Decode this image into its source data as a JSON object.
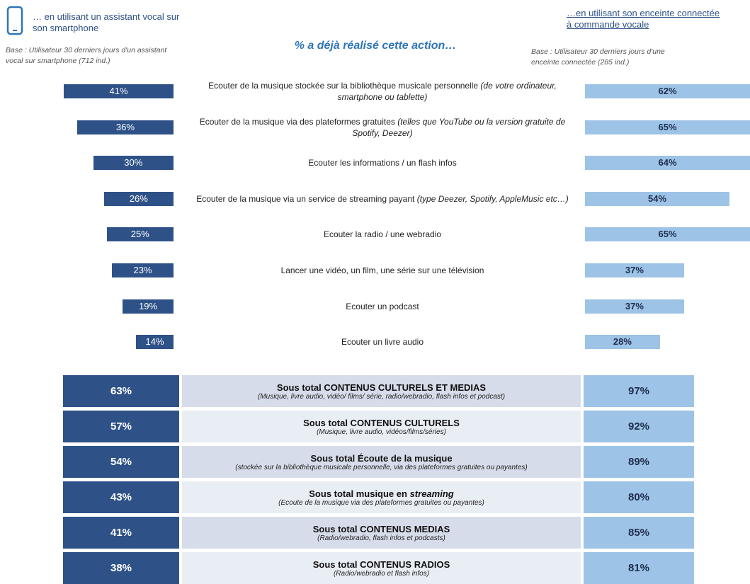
{
  "chart_data": {
    "type": "butterfly-bar",
    "subtitle": "% a déjà réalisé cette action…",
    "categories": [
      "Ecouter de la musique stockée sur la bibliothèque musicale personnelle",
      "Ecouter de la musique via des plateformes gratuites",
      "Ecouter les informations / un flash infos",
      "Ecouter de la musique via un service de streaming payant",
      "Ecouter  la radio / une webradio",
      "Lancer une vidéo, un film, une série sur une télévision",
      "Ecouter un podcast",
      "Ecouter un livre audio"
    ],
    "category_notes": [
      "(de votre ordinateur, smartphone ou tablette)",
      "(telles que YouTube ou la version gratuite de Spotify, Deezer)",
      null,
      "(type Deezer,  Spotify, AppleMusic etc…)",
      null,
      null,
      null,
      null
    ],
    "series": [
      {
        "name": "… en utilisant un assistant vocal sur son smartphone",
        "base": "Base : Utilisateur 30 derniers jours d'un assistant vocal  sur smartphone (712 ind.)",
        "color": "#2e5288",
        "values": [
          41,
          36,
          30,
          26,
          25,
          23,
          19,
          14
        ],
        "value_labels": [
          "41%",
          "36%",
          "30%",
          "26%",
          "25%",
          "23%",
          "19%",
          "14%"
        ]
      },
      {
        "name": "…en utilisant son enceinte connectée à commande vocale",
        "base": "Base : Utilisateur 30 derniers jours d'une enceinte connectée (285 ind.)",
        "color": "#9dc3e6",
        "values": [
          62,
          65,
          64,
          54,
          65,
          37,
          37,
          28
        ],
        "value_labels": [
          "62%",
          "65%",
          "64%",
          "54%",
          "65%",
          "37%",
          "37%",
          "28%"
        ]
      }
    ]
  },
  "table": {
    "rows": [
      {
        "left": "63%",
        "title": "Sous total CONTENUS CULTURELS ET MEDIAS",
        "note": "(Musique, livre audio, vidéo/ films/ série, radio/webradio, flash infos et podcast)",
        "right": "97%"
      },
      {
        "left": "57%",
        "title": "Sous total CONTENUS CULTURELS",
        "note": "(Musique, livre audio, vidéos/films/séries)",
        "right": "92%"
      },
      {
        "left": "54%",
        "title": "Sous total Écoute de la musique",
        "note": "(stockée sur la bibliothèque musicale personnelle, via des plateformes gratuites ou payantes)",
        "right": "89%"
      },
      {
        "left": "43%",
        "title": "Sous total  musique en",
        "emphasis": "streaming",
        "note": "(Ecoute de la musique via des plateformes gratuites ou payantes)",
        "right": "80%"
      },
      {
        "left": "41%",
        "title": "Sous total  CONTENUS MEDIAS",
        "note": "(Radio/webradio, flash infos et podcasts)",
        "right": "85%"
      },
      {
        "left": "38%",
        "title": "Sous total  CONTENUS RADIOS",
        "note": "(Radio/webradio et flash infos)",
        "right": "81%"
      }
    ]
  }
}
